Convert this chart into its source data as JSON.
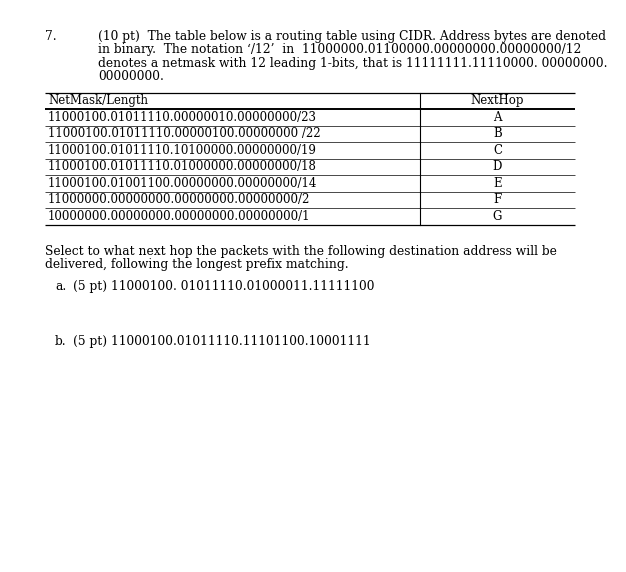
{
  "question_number": "7.",
  "question_points": "(10 pt)",
  "question_text1": "The table below is a routing table using CIDR. Address bytes are denoted",
  "question_text2": "in binary.  The notation ‘/12’  in  11000000.01100000.00000000.00000000/12",
  "question_text3": "denotes a netmask with 12 leading 1-bits, that is 11111111.11110000. 00000000.",
  "question_text4": "00000000.",
  "table_header_col1": "NetMask/Length",
  "table_header_col2": "NextHop",
  "table_rows": [
    [
      "11000100.01011110.00000010.00000000/23",
      "A"
    ],
    [
      "11000100.01011110.00000100.00000000 /22",
      "B"
    ],
    [
      "11000100.01011110.10100000.00000000/19",
      "C"
    ],
    [
      "11000100.01011110.01000000.00000000/18",
      "D"
    ],
    [
      "11000100.01001100.00000000.00000000/14",
      "E"
    ],
    [
      "11000000.00000000.00000000.00000000/2",
      "F"
    ],
    [
      "10000000.00000000.00000000.00000000/1",
      "G"
    ]
  ],
  "sub_line1": "Select to what next hop the packets with the following destination address will be",
  "sub_line2": "delivered, following the longest prefix matching.",
  "part_a_label": "a.",
  "part_a_pts": "(5 pt)",
  "part_a_addr": "11000100. 01011110.01000011.11111100",
  "part_b_label": "b.",
  "part_b_pts": "(5 pt)",
  "part_b_addr": "11000100.01011110.11101100.10001111",
  "bg_color": "#ffffff",
  "text_color": "#000000",
  "line_color": "#4a4a4a"
}
